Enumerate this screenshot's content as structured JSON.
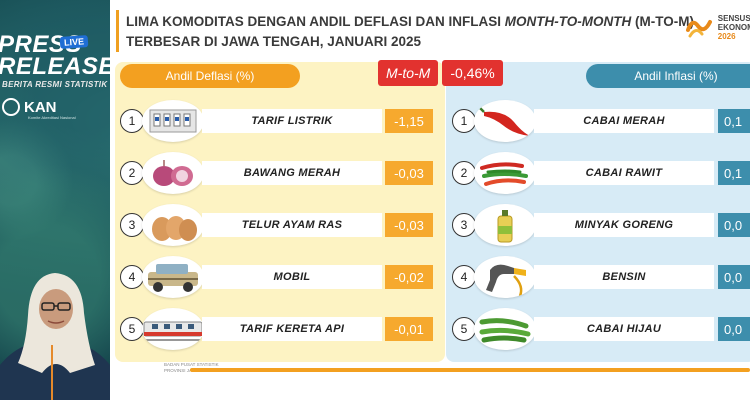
{
  "overlay": {
    "press_line1": "PRESS",
    "press_line2": "RELEASE",
    "live_badge": "LIVE",
    "press_sub": "BERITA RESMI STATISTIK",
    "kan_logo": "KAN",
    "kan_sub": "Komite Akreditasi Nasional"
  },
  "slide": {
    "title_line1_prefix": "LIMA KOMODITAS DENGAN ANDIL DEFLASI DAN INFLASI ",
    "title_line1_em": "MONTH-TO-MONTH",
    "title_line1_suffix": " (M-TO-M)",
    "title_line2": "TERBESAR DI JAWA TENGAH, JANUARI 2025",
    "sensus_line1": "SENSUS",
    "sensus_line2": "EKONOMI",
    "sensus_year": "2026",
    "deflasi_header": "Andil Deflasi (%)",
    "inflasi_header": "Andil Inflasi (%)",
    "mtom_label": "M-to-M",
    "mtom_value": "-0,46%",
    "footer_text_1": "BADAN PUSAT STATISTIK",
    "footer_text_2": "PROVINSI JAWA TENGAH"
  },
  "deflasi": [
    {
      "rank": "1",
      "name": "TARIF LISTRIK",
      "value": "-1,15",
      "icon": "electric-meter-icon"
    },
    {
      "rank": "2",
      "name": "BAWANG MERAH",
      "value": "-0,03",
      "icon": "shallot-icon"
    },
    {
      "rank": "3",
      "name": "TELUR AYAM RAS",
      "value": "-0,03",
      "icon": "egg-icon"
    },
    {
      "rank": "4",
      "name": "MOBIL",
      "value": "-0,02",
      "icon": "car-icon"
    },
    {
      "rank": "5",
      "name": "TARIF KERETA API",
      "value": "-0,01",
      "icon": "train-icon"
    }
  ],
  "inflasi": [
    {
      "rank": "1",
      "name": "CABAI MERAH",
      "value": "0,1",
      "icon": "red-chili-icon"
    },
    {
      "rank": "2",
      "name": "CABAI RAWIT",
      "value": "0,1",
      "icon": "bird-chili-icon"
    },
    {
      "rank": "3",
      "name": "MINYAK GORENG",
      "value": "0,0",
      "icon": "cooking-oil-icon"
    },
    {
      "rank": "4",
      "name": "BENSIN",
      "value": "0,0",
      "icon": "fuel-nozzle-icon"
    },
    {
      "rank": "5",
      "name": "CABAI HIJAU",
      "value": "0,0",
      "icon": "green-chili-icon"
    }
  ],
  "colors": {
    "deflasi_accent": "#f6a92e",
    "inflasi_accent": "#3d8eac",
    "mtom_red": "#e2322f",
    "deflasi_panel": "#fdf3c3",
    "inflasi_panel": "#d7ebf6"
  }
}
